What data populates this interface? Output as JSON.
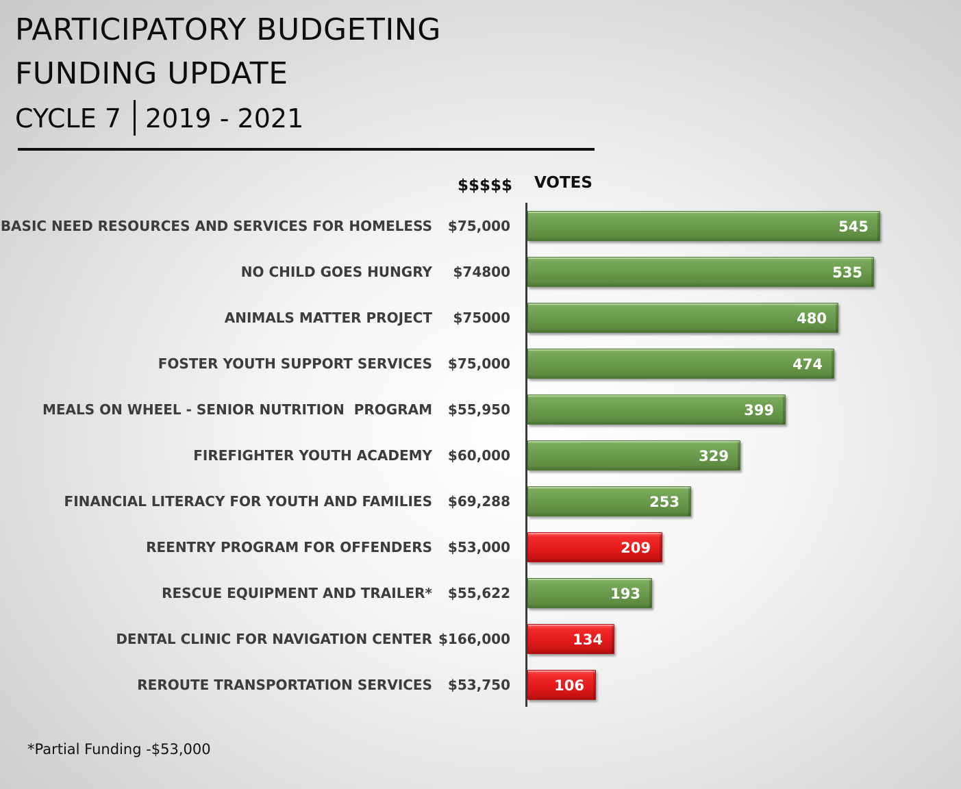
{
  "title": {
    "line1": "PARTICIPATORY BUDGETING",
    "line2": "FUNDING UPDATE",
    "cycle": "CYCLE 7",
    "years": "2019 - 2021"
  },
  "columns": {
    "money_header": "$$$$$",
    "votes_header": "VOTES"
  },
  "colors": {
    "funded": "#6a9b4c",
    "not_funded": "#e51b1b"
  },
  "footnote": "*Partial Funding -$53,000",
  "chart_data": {
    "type": "bar",
    "orientation": "horizontal",
    "title": "PARTICIPATORY BUDGETING FUNDING UPDATE",
    "xlabel": "VOTES",
    "ylabel": "",
    "xlim": [
      0,
      545
    ],
    "categories": [
      "BASIC NEED RESOURCES AND SERVICES FOR HOMELESS",
      "NO CHILD GOES HUNGRY",
      "ANIMALS MATTER PROJECT",
      "FOSTER YOUTH SUPPORT SERVICES",
      "MEALS ON WHEEL - SENIOR NUTRITION  PROGRAM",
      "FIREFIGHTER YOUTH ACADEMY",
      "FINANCIAL LITERACY FOR YOUTH AND FAMILIES",
      "REENTRY PROGRAM FOR OFFENDERS",
      "RESCUE EQUIPMENT AND TRAILER*",
      "DENTAL CLINIC FOR NAVIGATION CENTER",
      "REROUTE TRANSPORTATION SERVICES"
    ],
    "amounts": [
      "$75,000",
      "$74800",
      "$75000",
      "$75,000",
      "$55,950",
      "$60,000",
      "$69,288",
      "$53,000",
      "$55,622",
      "$166,000",
      "$53,750"
    ],
    "values": [
      545,
      535,
      480,
      474,
      399,
      329,
      253,
      209,
      193,
      134,
      106
    ],
    "status": [
      "funded",
      "funded",
      "funded",
      "funded",
      "funded",
      "funded",
      "funded",
      "not_funded",
      "funded",
      "not_funded",
      "not_funded"
    ]
  }
}
